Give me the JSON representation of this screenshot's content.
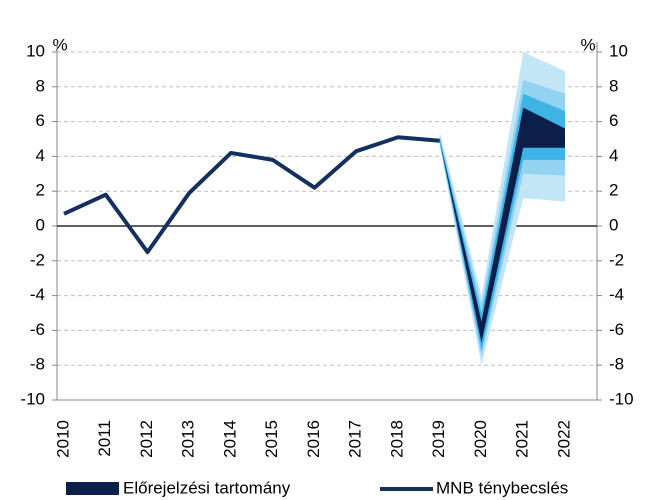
{
  "chart_data": {
    "type": "line",
    "categories": [
      "2010",
      "2011",
      "2012",
      "2013",
      "2014",
      "2015",
      "2016",
      "2017",
      "2018",
      "2019",
      "2020",
      "2021",
      "2022"
    ],
    "ylabel": "%",
    "y2label": "%",
    "ylim": [
      -10,
      10
    ],
    "yticks": [
      -10,
      -8,
      -6,
      -4,
      -2,
      0,
      2,
      4,
      6,
      8,
      10
    ],
    "y2lim": [
      -10,
      10
    ],
    "y2ticks": [
      -10,
      -8,
      -6,
      -4,
      -2,
      0,
      2,
      4,
      6,
      8,
      10
    ],
    "grid": true,
    "series": [
      {
        "name": "MNB ténybecslés",
        "color": "#14305e",
        "values": [
          0.7,
          1.8,
          -1.5,
          1.9,
          4.2,
          3.8,
          2.2,
          4.3,
          5.1,
          4.9,
          null,
          null,
          null
        ]
      }
    ],
    "fan": {
      "name": "Előrejelzési tartomány",
      "bands": [
        {
          "color": "#c3e6f7",
          "lower": [
            null,
            null,
            null,
            null,
            null,
            null,
            null,
            null,
            null,
            4.6,
            -8.0,
            1.6,
            1.4
          ],
          "upper": [
            null,
            null,
            null,
            null,
            null,
            null,
            null,
            null,
            null,
            5.4,
            -4.0,
            10.0,
            8.9
          ]
        },
        {
          "color": "#93d2f0",
          "lower": [
            null,
            null,
            null,
            null,
            null,
            null,
            null,
            null,
            null,
            4.7,
            -7.5,
            3.0,
            2.9
          ],
          "upper": [
            null,
            null,
            null,
            null,
            null,
            null,
            null,
            null,
            null,
            5.2,
            -4.5,
            8.4,
            7.6
          ]
        },
        {
          "color": "#3eb3e6",
          "lower": [
            null,
            null,
            null,
            null,
            null,
            null,
            null,
            null,
            null,
            4.8,
            -7.2,
            3.8,
            3.8
          ],
          "upper": [
            null,
            null,
            null,
            null,
            null,
            null,
            null,
            null,
            null,
            5.0,
            -5.0,
            7.6,
            6.6
          ]
        },
        {
          "color": "#0c1f4a",
          "lower": [
            null,
            null,
            null,
            null,
            null,
            null,
            null,
            null,
            null,
            4.9,
            -6.7,
            4.5,
            4.5
          ],
          "upper": [
            null,
            null,
            null,
            null,
            null,
            null,
            null,
            null,
            null,
            4.9,
            -5.5,
            6.8,
            5.6
          ]
        }
      ]
    },
    "legend": "bottom"
  }
}
